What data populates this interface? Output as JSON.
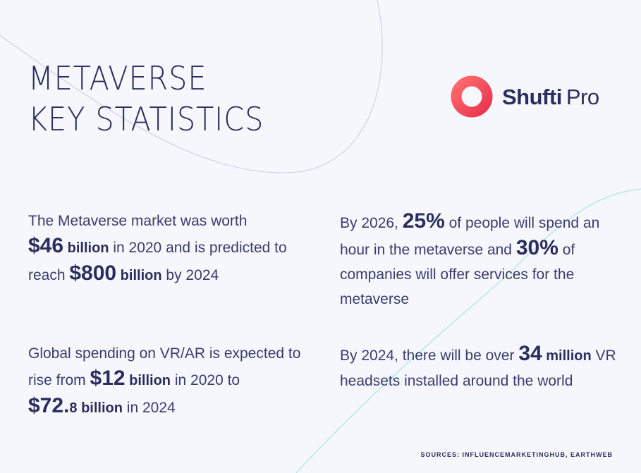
{
  "title": {
    "line1": "METAVERSE",
    "line2": "KEY STATISTICS"
  },
  "logo": {
    "brand_part1": "Shufti",
    "brand_part2": "Pro",
    "ring_color": "#f44f5a"
  },
  "stats": {
    "market": {
      "t1": "The Metaverse market was worth ",
      "v1": "$46",
      "u1": " billion",
      "t2": " in 2020 and is predicted to reach ",
      "v2": "$800",
      "u2": " billion",
      "t3": " by 2024"
    },
    "time": {
      "t1": "By 2026, ",
      "v1": "25%",
      "t2": " of people will spend an hour in the metaverse and ",
      "v2": "30%",
      "t3": " of companies will offer services for the metaverse"
    },
    "spending": {
      "t1": "Global spending on VR/AR is expected to rise from ",
      "v1": "$12",
      "u1": " billion",
      "t2": " in 2020 to ",
      "v2a": "$72.",
      "v2b": "8 billion",
      "t3": " in 2024"
    },
    "headsets": {
      "t1": "By 2024, there will be over ",
      "v1": "34",
      "u1": " million",
      "t2": " VR headsets installed around the world"
    }
  },
  "sources": "SOURCES: INFLUENCEMARKETINGHUB, EARTHWEB"
}
